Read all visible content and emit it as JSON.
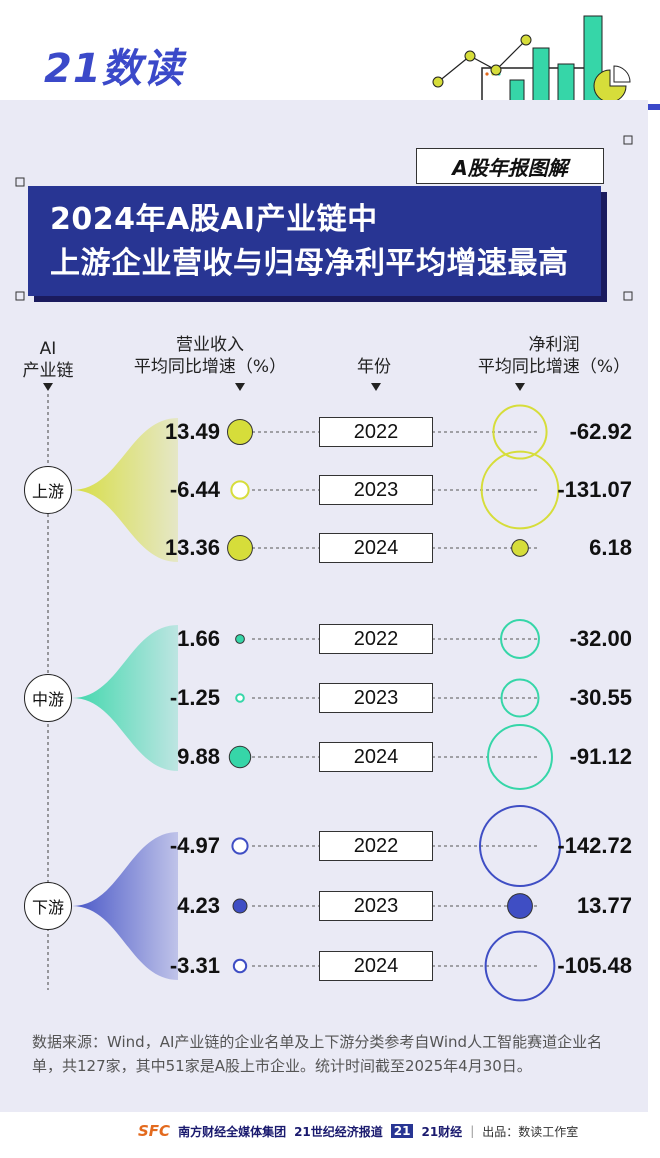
{
  "brand": {
    "logo": "21数读",
    "tag": "A股年报图解"
  },
  "title": {
    "line1": "2024年A股AI产业链中",
    "line2": "上游企业营收与归母净利平均增速最高"
  },
  "headers": {
    "chain": "AI\n产业链",
    "revenue": "营业收入\n平均同比增速（%）",
    "year": "年份",
    "profit": "净利润\n平均同比增速（%）"
  },
  "colors": {
    "upstream": "#d6dd3a",
    "midstream": "#36d6a8",
    "downstream": "#3f4ec4"
  },
  "chart_data": {
    "type": "table",
    "segments": [
      {
        "name": "上游",
        "rows": [
          {
            "year": "2022",
            "revenue": 13.49,
            "revenue_label": "13.49",
            "profit": -62.92,
            "profit_label": "-62.92"
          },
          {
            "year": "2023",
            "revenue": -6.44,
            "revenue_label": "-6.44",
            "profit": -131.07,
            "profit_label": "-131.07"
          },
          {
            "year": "2024",
            "revenue": 13.36,
            "revenue_label": "13.36",
            "profit": 6.18,
            "profit_label": "6.18"
          }
        ]
      },
      {
        "name": "中游",
        "rows": [
          {
            "year": "2022",
            "revenue": 1.66,
            "revenue_label": "1.66",
            "profit": -32.0,
            "profit_label": "-32.00"
          },
          {
            "year": "2023",
            "revenue": -1.25,
            "revenue_label": "-1.25",
            "profit": -30.55,
            "profit_label": "-30.55"
          },
          {
            "year": "2024",
            "revenue": 9.88,
            "revenue_label": "9.88",
            "profit": -91.12,
            "profit_label": "-91.12"
          }
        ]
      },
      {
        "name": "下游",
        "rows": [
          {
            "year": "2022",
            "revenue": -4.97,
            "revenue_label": "-4.97",
            "profit": -142.72,
            "profit_label": "-142.72"
          },
          {
            "year": "2023",
            "revenue": 4.23,
            "revenue_label": "4.23",
            "profit": 13.77,
            "profit_label": "13.77"
          },
          {
            "year": "2024",
            "revenue": -3.31,
            "revenue_label": "-3.31",
            "profit": -105.48,
            "profit_label": "-105.48"
          }
        ]
      }
    ]
  },
  "note": "数据来源：Wind，AI产业链的企业名单及上下游分类参考自Wind人工智能赛道企业名单，共127家，其中51家是A股上市企业。统计时间截至2025年4月30日。",
  "footer": {
    "sfc": "SFC",
    "group": "南方财经全媒体集团",
    "herald": "21世纪经济报道",
    "caijing_badge": "21",
    "caijing": "21财经",
    "source": "出品：数读工作室"
  }
}
